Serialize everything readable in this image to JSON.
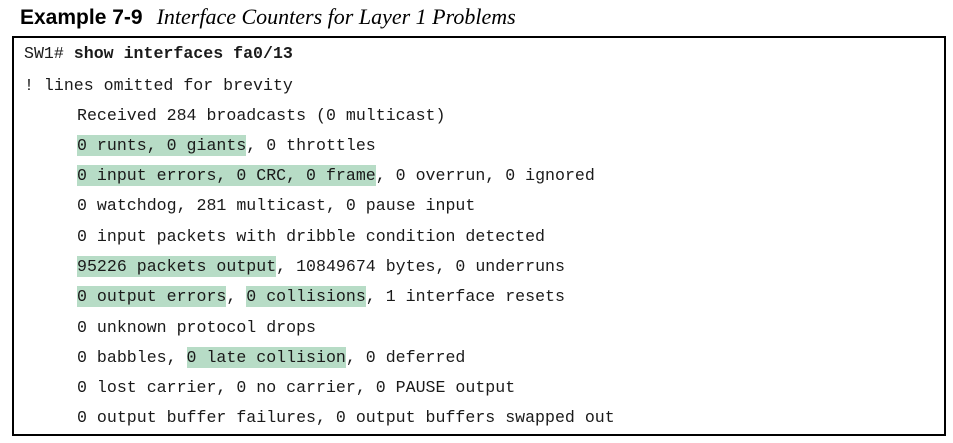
{
  "example": {
    "label": "Example 7-9",
    "caption": "Interface Counters for Layer 1 Problems"
  },
  "lines": {
    "l1": {
      "prompt": "SW1# ",
      "command": "show interfaces fa0/13"
    },
    "l2": {
      "text": "! lines omitted for brevity"
    },
    "l3": {
      "text": "Received 284 broadcasts (0 multicast)"
    },
    "l4": {
      "hl1": "0 runts, 0 giants",
      "rest": ", 0 throttles"
    },
    "l5": {
      "hl1": "0 input errors, 0 CRC, 0 frame",
      "rest": ", 0 overrun, 0 ignored"
    },
    "l6": {
      "text": "0 watchdog, 281 multicast, 0 pause input"
    },
    "l7": {
      "text": "0 input packets with dribble condition detected"
    },
    "l8": {
      "hl1": "95226 packets output",
      "rest": ", 10849674 bytes, 0 underruns"
    },
    "l9": {
      "hl1": "0 output errors",
      "sep": ", ",
      "hl2": "0 collisions",
      "rest": ", 1 interface resets"
    },
    "l10": {
      "text": "0 unknown protocol drops"
    },
    "l11": {
      "pre": "0 babbles, ",
      "hl1": "0 late collision",
      "rest": ", 0 deferred"
    },
    "l12": {
      "text": "0 lost carrier, 0 no carrier, 0 PAUSE output"
    },
    "l13": {
      "text": "0 output buffer failures, 0 output buffers swapped out"
    }
  },
  "colors": {
    "highlight": "#b7dcc6",
    "border": "#000000",
    "text": "#1a1a1a"
  }
}
